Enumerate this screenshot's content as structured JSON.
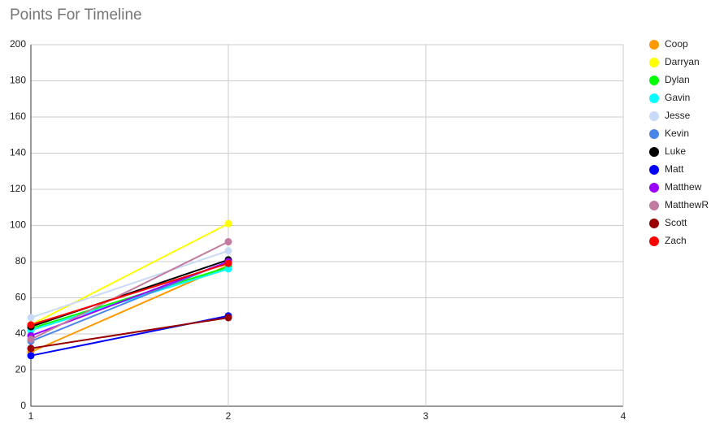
{
  "chart_data": {
    "type": "line",
    "title": "Points For Timeline",
    "x": [
      1,
      2
    ],
    "xlim": [
      1,
      4
    ],
    "xticks": [
      1,
      2,
      3,
      4
    ],
    "ylim": [
      0,
      200
    ],
    "yticks": [
      0,
      20,
      40,
      60,
      80,
      100,
      120,
      140,
      160,
      180,
      200
    ],
    "grid": true,
    "legend": "right",
    "series": [
      {
        "name": "Coop",
        "color": "#ff9900",
        "values": [
          30,
          78
        ]
      },
      {
        "name": "Darryan",
        "color": "#ffff00",
        "values": [
          45,
          101
        ]
      },
      {
        "name": "Dylan",
        "color": "#00ff00",
        "values": [
          43,
          77
        ]
      },
      {
        "name": "Gavin",
        "color": "#00ffff",
        "values": [
          42,
          76
        ]
      },
      {
        "name": "Jesse",
        "color": "#c9daf8",
        "values": [
          49,
          86
        ]
      },
      {
        "name": "Kevin",
        "color": "#4a86e8",
        "values": [
          36,
          80
        ]
      },
      {
        "name": "Luke",
        "color": "#000000",
        "values": [
          44,
          81
        ]
      },
      {
        "name": "Matt",
        "color": "#0000ff",
        "values": [
          28,
          50
        ]
      },
      {
        "name": "Matthew",
        "color": "#9900ff",
        "values": [
          39,
          80
        ]
      },
      {
        "name": "MatthewR",
        "color": "#c27ba0",
        "values": [
          37,
          91
        ]
      },
      {
        "name": "Scott",
        "color": "#980000",
        "values": [
          32,
          49
        ]
      },
      {
        "name": "Zach",
        "color": "#ff0000",
        "values": [
          45,
          79
        ]
      }
    ]
  }
}
